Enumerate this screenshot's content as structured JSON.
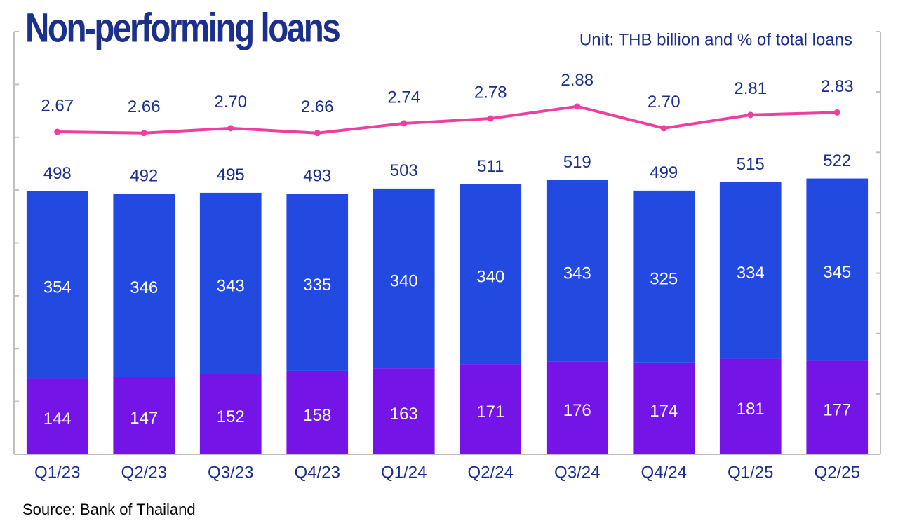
{
  "chart_data": {
    "type": "bar",
    "title": "Non-performing loans",
    "subtitle": "Unit: THB billion and % of total loans",
    "source": "Source: Bank of Thailand",
    "stacked": true,
    "categories": [
      "Q1/23",
      "Q2/23",
      "Q3/23",
      "Q4/23",
      "Q1/24",
      "Q2/24",
      "Q3/24",
      "Q4/24",
      "Q1/25",
      "Q2/25"
    ],
    "series": [
      {
        "color": "#7414e6",
        "values": [
          144,
          147,
          152,
          158,
          163,
          171,
          176,
          174,
          181,
          177
        ]
      },
      {
        "color": "#2249e0",
        "values": [
          354,
          346,
          343,
          335,
          340,
          340,
          343,
          325,
          334,
          345
        ]
      },
      {
        "type": "line",
        "axis": "y2",
        "color": "#ee3fa0",
        "values": [
          2.67,
          2.66,
          2.7,
          2.66,
          2.74,
          2.78,
          2.88,
          2.7,
          2.81,
          2.83
        ],
        "value_labels": [
          "2.67",
          "2.66",
          "2.70",
          "2.66",
          "2.74",
          "2.78",
          "2.88",
          "2.70",
          "2.81",
          "2.83"
        ]
      }
    ],
    "totals": [
      498,
      492,
      495,
      493,
      503,
      511,
      519,
      499,
      515,
      522
    ],
    "ylim": [
      0,
      800
    ],
    "yticks": [
      0,
      100,
      200,
      300,
      400,
      500,
      600,
      700,
      800
    ],
    "y2lim": [
      0,
      3.5
    ],
    "y2ticks": [
      0,
      0.5,
      1,
      1.5,
      2,
      2.5,
      3,
      3.5
    ]
  }
}
